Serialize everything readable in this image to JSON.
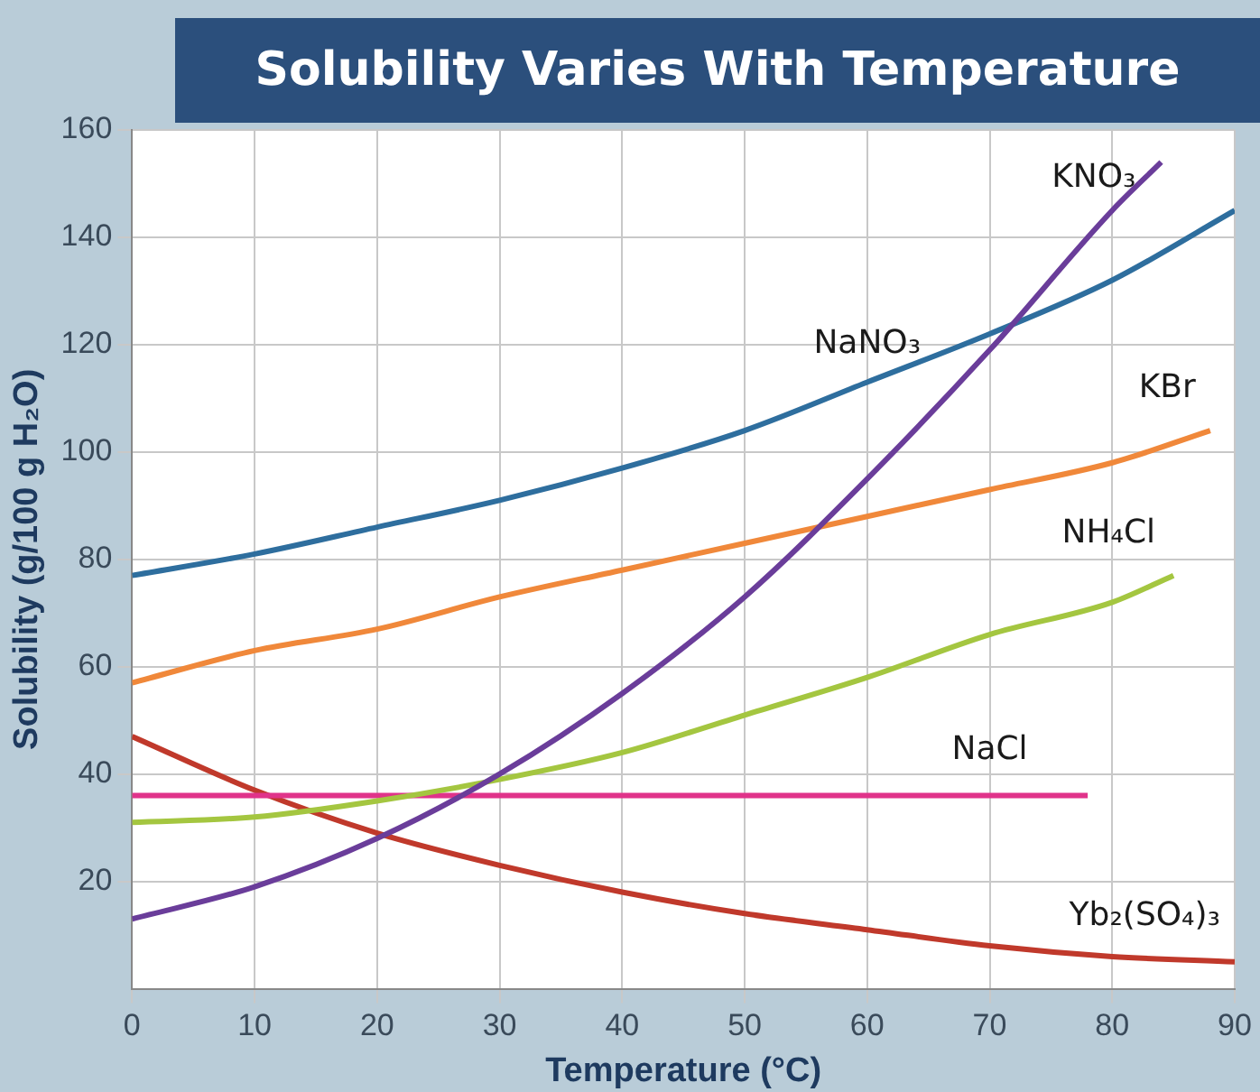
{
  "chart_data": {
    "type": "line",
    "title": "Solubility Varies With Temperature",
    "xlabel": "Temperature (°C)",
    "ylabel": "Solubility (g/100 g H₂O)",
    "xlim": [
      0,
      90
    ],
    "xticks": [
      0,
      10,
      20,
      30,
      40,
      50,
      60,
      70,
      80,
      90
    ],
    "ylim": [
      0,
      160
    ],
    "yticks": [
      20,
      40,
      60,
      80,
      100,
      120,
      140,
      160
    ],
    "grid": true,
    "legend": false,
    "marker": "none",
    "line_style": "solid",
    "series": [
      {
        "name": "KNO₃",
        "color": "#6a3d9a",
        "x": [
          0,
          10,
          20,
          30,
          40,
          50,
          60,
          70,
          80,
          84
        ],
        "values": [
          13,
          19,
          28,
          40,
          55,
          73,
          95,
          119,
          145,
          154
        ]
      },
      {
        "name": "NaNO₃",
        "color": "#2e6e9e",
        "x": [
          0,
          10,
          20,
          30,
          40,
          50,
          60,
          70,
          80,
          90
        ],
        "values": [
          77,
          81,
          86,
          91,
          97,
          104,
          113,
          122,
          132,
          145
        ]
      },
      {
        "name": "KBr",
        "color": "#f0883a",
        "x": [
          0,
          10,
          20,
          30,
          40,
          50,
          60,
          70,
          80,
          88
        ],
        "values": [
          57,
          63,
          67,
          73,
          78,
          83,
          88,
          93,
          98,
          104
        ]
      },
      {
        "name": "NH₄Cl",
        "color": "#a4c640",
        "x": [
          0,
          10,
          20,
          30,
          40,
          50,
          60,
          70,
          80,
          85
        ],
        "values": [
          31,
          32,
          35,
          39,
          44,
          51,
          58,
          66,
          72,
          77
        ]
      },
      {
        "name": "NaCl",
        "color": "#e0338a",
        "x": [
          0,
          10,
          20,
          30,
          40,
          50,
          60,
          70,
          78
        ],
        "values": [
          36,
          36,
          36,
          36,
          36,
          36,
          36,
          36,
          36
        ]
      },
      {
        "name": "Yb₂(SO₄)₃",
        "color": "#c0392b",
        "x": [
          0,
          10,
          20,
          30,
          40,
          50,
          60,
          70,
          80,
          90
        ],
        "values": [
          47,
          37,
          29,
          23,
          18,
          14,
          11,
          8,
          6,
          5
        ]
      }
    ]
  }
}
